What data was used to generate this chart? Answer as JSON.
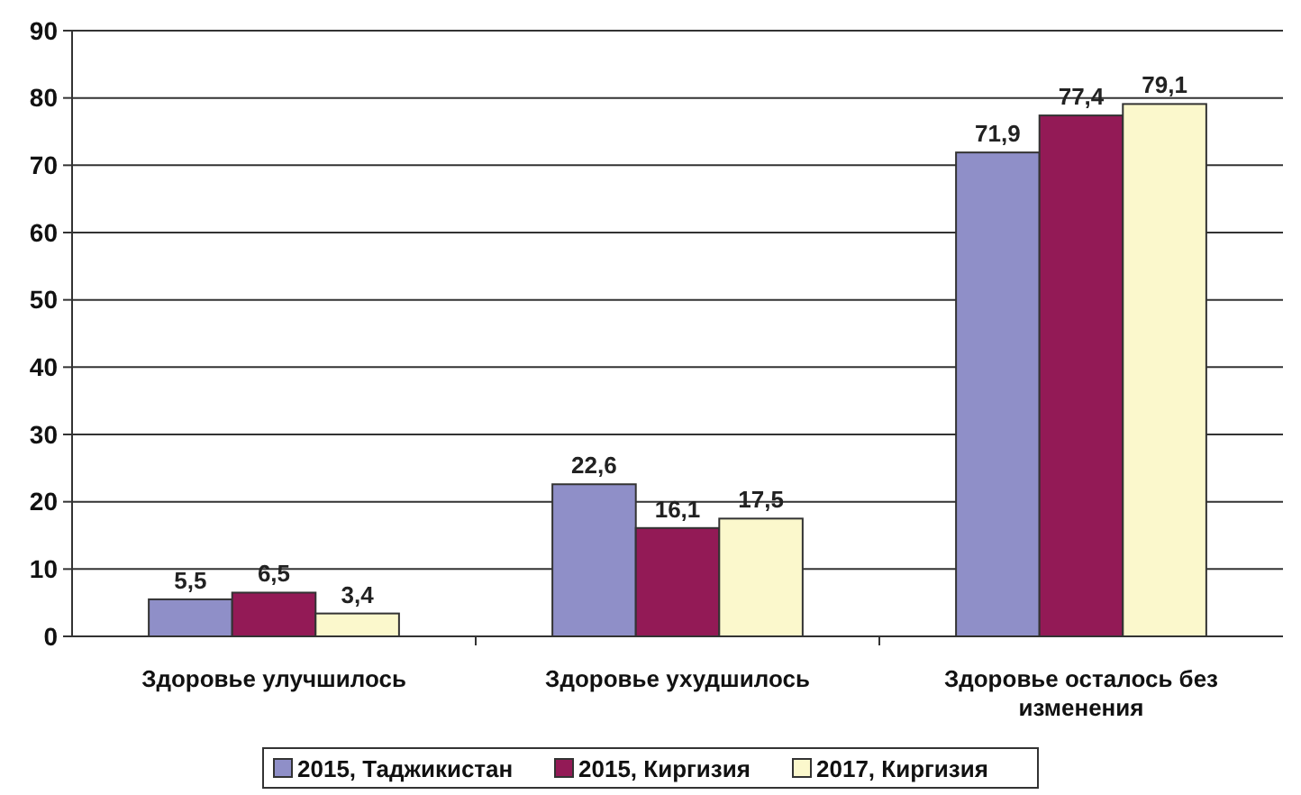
{
  "chart_data": {
    "type": "bar",
    "categories": [
      "Здоровье улучшилось",
      "Здоровье ухудшилось",
      "Здоровье осталось без изменения"
    ],
    "series": [
      {
        "name": "2015, Таджикистан",
        "color": "#8f8fc8",
        "values": [
          5.5,
          22.6,
          71.9
        ]
      },
      {
        "name": "2015, Киргизия",
        "color": "#931a56",
        "values": [
          6.5,
          16.1,
          77.4
        ]
      },
      {
        "name": "2017, Киргизия",
        "color": "#fbf8cc",
        "values": [
          3.4,
          17.5,
          79.1
        ]
      }
    ],
    "value_labels": [
      [
        "5,5",
        "22,6",
        "71,9"
      ],
      [
        "6,5",
        "16,1",
        "77,4"
      ],
      [
        "3,4",
        "17,5",
        "79,1"
      ]
    ],
    "ylim": [
      0,
      90
    ],
    "yticks": [
      0,
      10,
      20,
      30,
      40,
      50,
      60,
      70,
      80,
      90
    ],
    "grid": "y",
    "legend": "bottom"
  }
}
